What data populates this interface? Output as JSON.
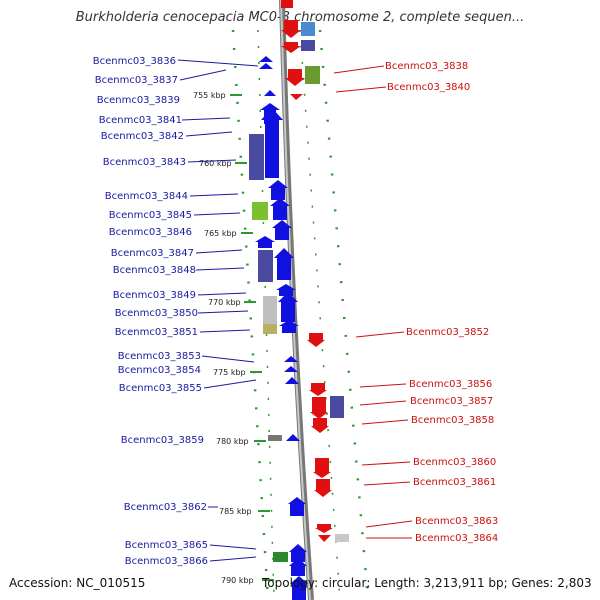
{
  "title": "Burkholderia cenocepacia MC0-3 chromosome 2, complete sequen...",
  "footer": {
    "accession": "Accession: NC_010515",
    "topology": "Topology: circular; Length: 3,213,911 bp; Genes: 2,803"
  },
  "ticks": [
    "755 kbp",
    "760 kbp",
    "765 kbp",
    "770 kbp",
    "775 kbp",
    "780 kbp",
    "785 kbp",
    "790 kbp"
  ],
  "left_genes": [
    "Bcenmc03_3836",
    "Bcenmc03_3837",
    "Bcenmc03_3839",
    "Bcenmc03_3841",
    "Bcenmc03_3842",
    "Bcenmc03_3843",
    "Bcenmc03_3844",
    "Bcenmc03_3845",
    "Bcenmc03_3846",
    "Bcenmc03_3847",
    "Bcenmc03_3848",
    "Bcenmc03_3849",
    "Bcenmc03_3850",
    "Bcenmc03_3851",
    "Bcenmc03_3853",
    "Bcenmc03_3854",
    "Bcenmc03_3855",
    "Bcenmc03_3859",
    "Bcenmc03_3862",
    "Bcenmc03_3865",
    "Bcenmc03_3866"
  ],
  "right_genes": [
    "Bcenmc03_3838",
    "Bcenmc03_3840",
    "Bcenmc03_3852",
    "Bcenmc03_3856",
    "Bcenmc03_3857",
    "Bcenmc03_3858",
    "Bcenmc03_3860",
    "Bcenmc03_3861",
    "Bcenmc03_3863",
    "Bcenmc03_3864"
  ],
  "colors": {
    "forward": "#1010e0",
    "reverse": "#e01010",
    "left_label": "#1a1aa0",
    "right_label": "#cc1010",
    "backbone": "#888888",
    "dots": "#2a9a2a"
  }
}
